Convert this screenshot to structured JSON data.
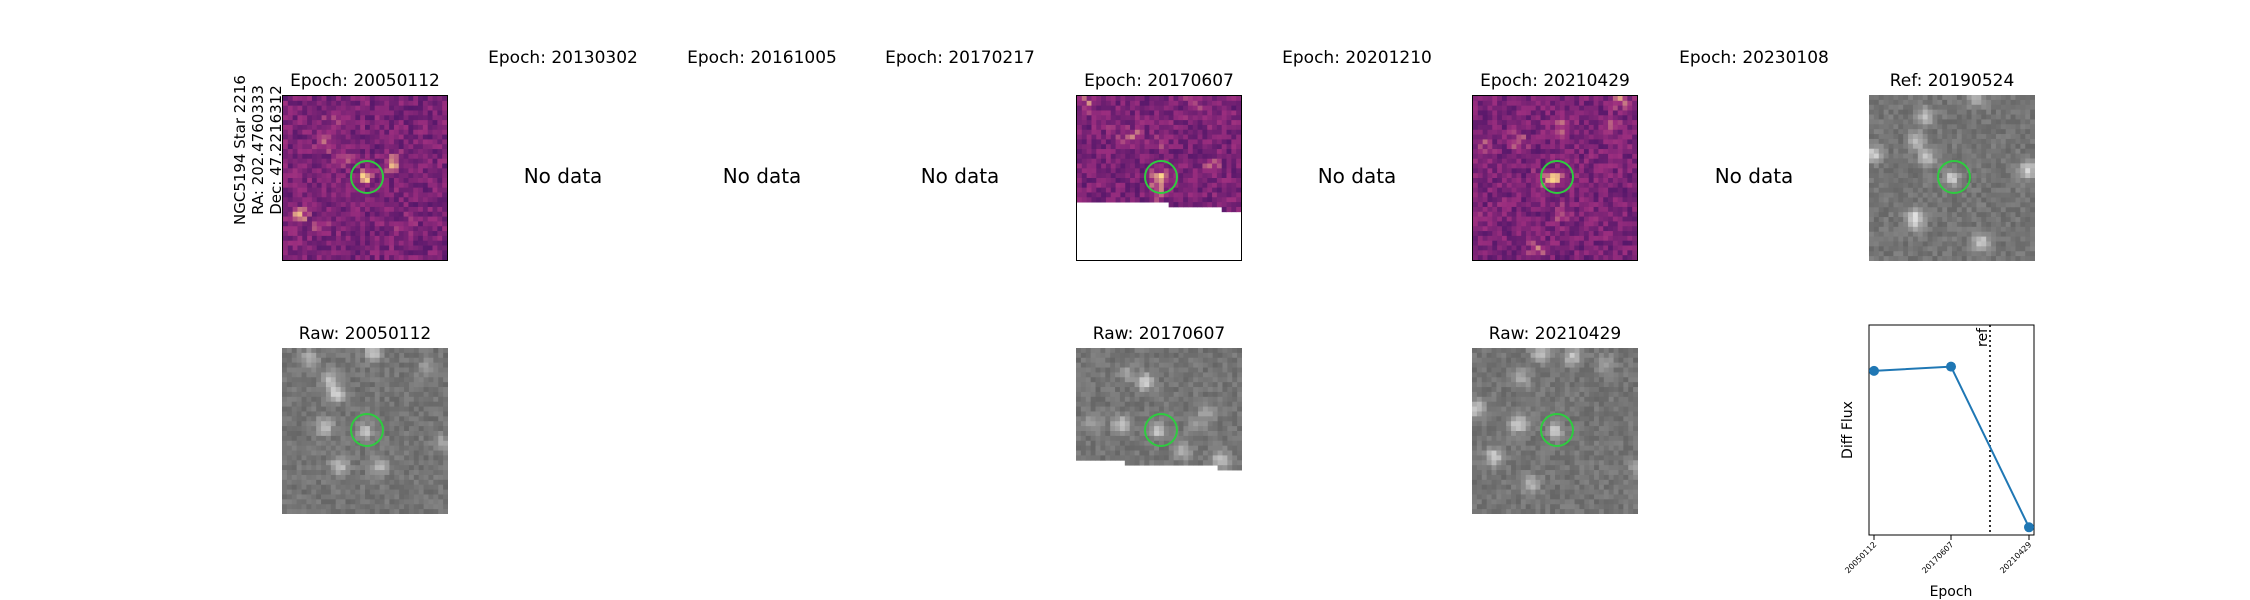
{
  "side_label": {
    "line1": "NGC5194 Star 2216",
    "line2": "RA: 202.4760333",
    "line3": "Dec: 47.2216312"
  },
  "nodata_label": "No data",
  "diff_panels": [
    {
      "title": "Epoch: 20050112",
      "has_data": true
    },
    {
      "title": "Epoch: 20130302",
      "has_data": false
    },
    {
      "title": "Epoch: 20161005",
      "has_data": false
    },
    {
      "title": "Epoch: 20170217",
      "has_data": false
    },
    {
      "title": "Epoch: 20170607",
      "has_data": true
    },
    {
      "title": "Epoch: 20201210",
      "has_data": false
    },
    {
      "title": "Epoch: 20210429",
      "has_data": true
    },
    {
      "title": "Epoch: 20230108",
      "has_data": false
    }
  ],
  "ref_panel": {
    "title": "Ref: 20190524"
  },
  "raw_panels": [
    {
      "title": "Raw: 20050112"
    },
    {
      "title": "Raw: 20170607"
    },
    {
      "title": "Raw: 20210429"
    }
  ],
  "colors": {
    "circle": "#2ecc40",
    "line": "#1f77b4",
    "diff_low": "#2c0a5e",
    "diff_mid": "#9c2e7f",
    "diff_high": "#fbd48a"
  },
  "chart_data": {
    "type": "line",
    "x": [
      "20050112",
      "20170607",
      "20210429"
    ],
    "y": [
      0.88,
      0.92,
      -0.55
    ],
    "ylim": [
      -0.62,
      1.3
    ],
    "ref_label": "ref",
    "ref_position_between": [
      "20170607",
      "20210429"
    ],
    "xlabel": "Epoch",
    "ylabel": "Diff Flux"
  }
}
